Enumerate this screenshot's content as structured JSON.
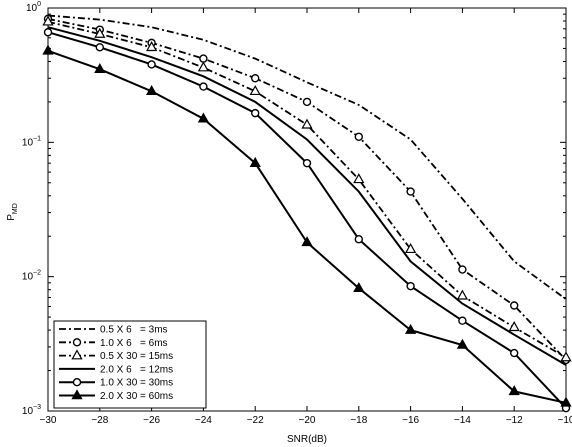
{
  "chart_data": {
    "type": "line",
    "xlabel": "SNR(dB)",
    "ylabel": "P",
    "ylabel_sub": "MD",
    "xlim": [
      -30,
      -10
    ],
    "ylim": [
      0.001,
      1
    ],
    "yscale": "log",
    "grid": false,
    "legend_position": "bottom-left",
    "x_ticks": [
      -30,
      -28,
      -26,
      -24,
      -22,
      -20,
      -18,
      -16,
      -14,
      -12,
      -10
    ],
    "x_tick_labels": [
      "−30",
      "−28",
      "−26",
      "−24",
      "−22",
      "−20",
      "−18",
      "−16",
      "−14",
      "−12",
      "−10"
    ],
    "y_ticks": [
      {
        "value": 1,
        "base": "10",
        "exp": "0"
      },
      {
        "value": 0.1,
        "base": "10",
        "exp": "−1"
      },
      {
        "value": 0.01,
        "base": "10",
        "exp": "−2"
      },
      {
        "value": 0.001,
        "base": "10",
        "exp": "−3"
      }
    ],
    "x": [
      -30,
      -28,
      -26,
      -24,
      -22,
      -20,
      -18,
      -16,
      -14,
      -12,
      -10
    ],
    "series": [
      {
        "name": "0.5 X 6   = 3ms",
        "style": "dashdot",
        "marker": "none",
        "values": [
          0.88,
          0.82,
          0.72,
          0.58,
          0.42,
          0.28,
          0.19,
          0.105,
          0.038,
          0.013,
          0.0068
        ]
      },
      {
        "name": "1.0 X 6   = 6ms",
        "style": "dashdot",
        "marker": "circle",
        "values": [
          0.83,
          0.69,
          0.55,
          0.42,
          0.3,
          0.2,
          0.11,
          0.043,
          0.0113,
          0.0061,
          0.0024
        ]
      },
      {
        "name": "0.5 X 30 = 15ms",
        "style": "dashdot",
        "marker": "triangle",
        "values": [
          0.79,
          0.64,
          0.51,
          0.36,
          0.24,
          0.135,
          0.053,
          0.016,
          0.0072,
          0.0042,
          0.0025
        ]
      },
      {
        "name": "2.0 X 6   = 12ms",
        "style": "solid",
        "marker": "none",
        "values": [
          0.72,
          0.57,
          0.43,
          0.31,
          0.2,
          0.105,
          0.043,
          0.013,
          0.0063,
          0.0037,
          0.0022
        ]
      },
      {
        "name": "1.0 X 30 = 30ms",
        "style": "solid",
        "marker": "circle",
        "values": [
          0.66,
          0.51,
          0.38,
          0.26,
          0.165,
          0.07,
          0.019,
          0.0085,
          0.0047,
          0.0027,
          0.00105
        ]
      },
      {
        "name": "2.0 X 30 = 60ms",
        "style": "solid",
        "marker": "triangle",
        "values": [
          0.48,
          0.35,
          0.24,
          0.15,
          0.07,
          0.018,
          0.0082,
          0.004,
          0.0031,
          0.0014,
          0.00115
        ]
      }
    ]
  }
}
